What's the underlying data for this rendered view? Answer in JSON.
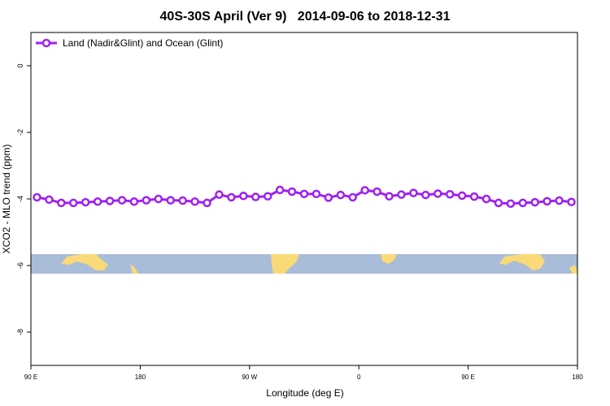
{
  "chart_data": {
    "type": "line",
    "title": "40S-30S April (Ver 9)   2014-09-06 to 2018-12-31",
    "x_label": "Longitude (deg E)",
    "y_label": "XCO2 - MLO trend (ppm)",
    "x": [
      95,
      105,
      115,
      125,
      135,
      145,
      155,
      165,
      175,
      185,
      195,
      205,
      215,
      225,
      235,
      245,
      255,
      265,
      275,
      285,
      295,
      305,
      315,
      325,
      335,
      345,
      355,
      365,
      375,
      385,
      395,
      405,
      415,
      425,
      435,
      445,
      455,
      465,
      475,
      485,
      495,
      505,
      515,
      525,
      535
    ],
    "series": [
      {
        "name": "Land (Nadir&Glint) and Ocean (Glint)",
        "color": "#a020f0",
        "values": [
          -3.95,
          -4.02,
          -4.12,
          -4.12,
          -4.1,
          -4.08,
          -4.06,
          -4.04,
          -4.08,
          -4.04,
          -4.0,
          -4.04,
          -4.05,
          -4.08,
          -4.12,
          -3.87,
          -3.95,
          -3.91,
          -3.94,
          -3.92,
          -3.73,
          -3.78,
          -3.85,
          -3.85,
          -3.96,
          -3.88,
          -3.95,
          -3.74,
          -3.78,
          -3.92,
          -3.87,
          -3.82,
          -3.88,
          -3.84,
          -3.86,
          -3.9,
          -3.93,
          -4.0,
          -4.12,
          -4.14,
          -4.12,
          -4.1,
          -4.07,
          -4.05,
          -4.09
        ]
      }
    ],
    "xlim": [
      90,
      540
    ],
    "xticks": [
      {
        "value": 90,
        "label": "90 E"
      },
      180,
      {
        "value": 270,
        "label": "90 W"
      },
      {
        "value": 360,
        "label": "0"
      },
      {
        "value": 450,
        "label": "90 E"
      },
      {
        "value": 540,
        "label": "180"
      }
    ],
    "ylim": [
      -9,
      1
    ],
    "yticks": [
      0,
      -2,
      -4,
      -6,
      -8
    ],
    "legend": "top-left"
  }
}
